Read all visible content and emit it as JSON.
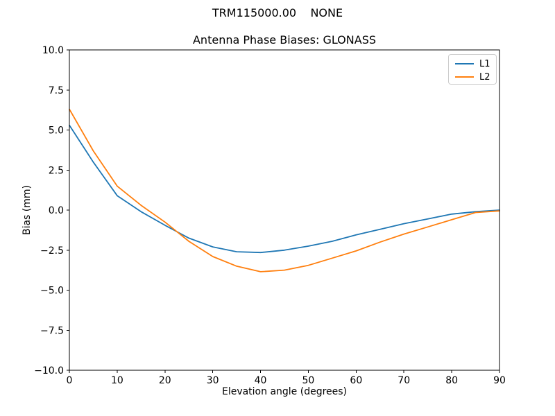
{
  "figure": {
    "suptitle": "TRM115000.00    NONE",
    "background": "#ffffff",
    "text_color": "#000000",
    "spine_color": "#000000"
  },
  "chart_data": {
    "type": "line",
    "title": "Antenna Phase Biases: GLONASS",
    "xlabel": "Elevation angle (degrees)",
    "ylabel": "Bias (mm)",
    "xlim": [
      0,
      90
    ],
    "ylim": [
      -10,
      10
    ],
    "grid": false,
    "xticks": {
      "values": [
        0,
        10,
        20,
        30,
        40,
        50,
        60,
        70,
        80,
        90
      ],
      "labels": [
        "0",
        "10",
        "20",
        "30",
        "40",
        "50",
        "60",
        "70",
        "80",
        "90"
      ]
    },
    "yticks": {
      "values": [
        10,
        7.5,
        5,
        2.5,
        0,
        -2.5,
        -5,
        -7.5,
        -10
      ],
      "labels": [
        "10.0",
        "7.5",
        "5.0",
        "2.5",
        "0.0",
        "−2.5",
        "−5.0",
        "−7.5",
        "−10.0"
      ]
    },
    "legend": {
      "position": "upper right",
      "entries": [
        "L1",
        "L2"
      ]
    },
    "x": [
      0,
      5,
      10,
      15,
      20,
      25,
      30,
      35,
      40,
      45,
      50,
      55,
      60,
      65,
      70,
      75,
      80,
      85,
      90
    ],
    "series": [
      {
        "name": "L1",
        "color": "#1f77b4",
        "values": [
          5.3,
          3.0,
          0.9,
          -0.1,
          -0.95,
          -1.75,
          -2.3,
          -2.6,
          -2.65,
          -2.5,
          -2.25,
          -1.95,
          -1.55,
          -1.2,
          -0.85,
          -0.55,
          -0.25,
          -0.1,
          0.0
        ]
      },
      {
        "name": "L2",
        "color": "#ff7f0e",
        "values": [
          6.3,
          3.7,
          1.5,
          0.3,
          -0.75,
          -1.95,
          -2.9,
          -3.5,
          -3.85,
          -3.75,
          -3.45,
          -3.0,
          -2.55,
          -2.0,
          -1.5,
          -1.05,
          -0.6,
          -0.15,
          -0.05
        ]
      }
    ]
  }
}
